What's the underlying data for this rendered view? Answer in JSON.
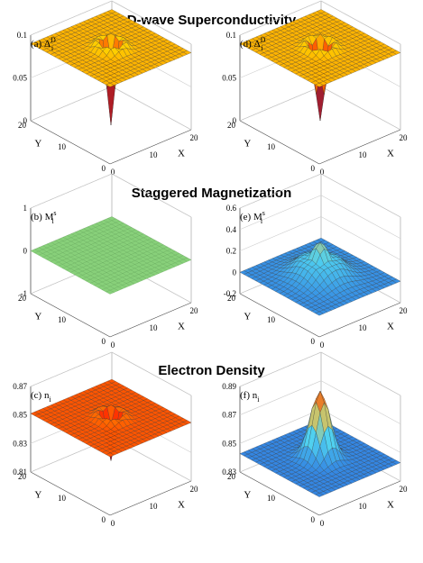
{
  "sections": [
    {
      "title": "D-wave Superconductivity"
    },
    {
      "title": "Staggered Magnetization"
    },
    {
      "title": "Electron Density"
    }
  ],
  "colors": {
    "hot_low": "#ff1a00",
    "hot_high": "#ffe000",
    "cool_low": "#1f4fd8",
    "cool_high": "#ffffff",
    "green": "#88d07a"
  },
  "chart_data": [
    {
      "id": "a",
      "type": "surface",
      "panel_label": "(a) Δ",
      "panel_sub": "i",
      "panel_sup": "D",
      "colormap": "hot",
      "xlabel": "X",
      "ylabel": "Y",
      "xlim": [
        0,
        20
      ],
      "ylim": [
        0,
        20
      ],
      "zlim": [
        0,
        0.1
      ],
      "xticks": [
        "0",
        "10",
        "20"
      ],
      "yticks": [
        "0",
        "10",
        "20"
      ],
      "zticks": [
        "0",
        "0.05",
        "0.1"
      ],
      "surface": {
        "base": 0.09,
        "peak": -0.09,
        "width": 0.9,
        "ring": 0.012,
        "center": [
          10,
          10
        ]
      }
    },
    {
      "id": "d",
      "type": "surface",
      "panel_label": "(d) Δ",
      "panel_sub": "i",
      "panel_sup": "D",
      "colormap": "hot",
      "xlabel": "X",
      "ylabel": "Y",
      "xlim": [
        0,
        20
      ],
      "ylim": [
        0,
        20
      ],
      "zlim": [
        0,
        0.1
      ],
      "xticks": [
        "0",
        "10",
        "20"
      ],
      "yticks": [
        "0",
        "10",
        "20"
      ],
      "zticks": [
        "0",
        "0.05",
        "0.1"
      ],
      "surface": {
        "base": 0.09,
        "peak": -0.085,
        "width": 1.1,
        "ring": 0.015,
        "center": [
          10,
          10
        ]
      }
    },
    {
      "id": "b",
      "type": "surface",
      "panel_label": "(b) M",
      "panel_sub": "i",
      "panel_sup": "s",
      "colormap": "green",
      "xlabel": "X",
      "ylabel": "Y",
      "xlim": [
        0,
        20
      ],
      "ylim": [
        0,
        20
      ],
      "zlim": [
        -1,
        1
      ],
      "xticks": [
        "0",
        "10",
        "20"
      ],
      "yticks": [
        "0",
        "10",
        "20"
      ],
      "zticks": [
        "-1",
        "0",
        "1"
      ],
      "surface": {
        "base": 0.0,
        "peak": 0.0,
        "width": 1,
        "ring": 0,
        "center": [
          10,
          10
        ]
      }
    },
    {
      "id": "e",
      "type": "surface",
      "panel_label": "(e) M",
      "panel_sub": "i",
      "panel_sup": "s",
      "colormap": "cool",
      "xlabel": "X",
      "ylabel": "Y",
      "xlim": [
        0,
        20
      ],
      "ylim": [
        0,
        20
      ],
      "zlim": [
        -0.2,
        0.6
      ],
      "xticks": [
        "0",
        "10",
        "20"
      ],
      "yticks": [
        "0",
        "10",
        "20"
      ],
      "zticks": [
        "-0.2",
        "0",
        "0.2",
        "0.4",
        "0.6"
      ],
      "surface": {
        "base": 0.0,
        "peak": 0.32,
        "width": 3.2,
        "ring": -0.08,
        "center": [
          10,
          10
        ]
      }
    },
    {
      "id": "c",
      "type": "surface",
      "panel_label": "(c) n",
      "panel_sub": "i",
      "panel_sup": "",
      "colormap": "hot",
      "xlabel": "X",
      "ylabel": "Y",
      "xlim": [
        0,
        20
      ],
      "ylim": [
        0,
        20
      ],
      "zlim": [
        0.81,
        0.87
      ],
      "xticks": [
        "0",
        "10",
        "20"
      ],
      "yticks": [
        "0",
        "10",
        "20"
      ],
      "zticks": [
        "0.81",
        "0.83",
        "0.85",
        "0.87"
      ],
      "surface": {
        "base": 0.851,
        "peak": -0.03,
        "width": 1.0,
        "ring": 0.006,
        "center": [
          10,
          10
        ]
      }
    },
    {
      "id": "f",
      "type": "surface",
      "panel_label": "(f) n",
      "panel_sub": "i",
      "panel_sup": "",
      "colormap": "cool",
      "xlabel": "X",
      "ylabel": "Y",
      "xlim": [
        0,
        20
      ],
      "ylim": [
        0,
        20
      ],
      "zlim": [
        0.83,
        0.9
      ],
      "xticks": [
        "0",
        "10",
        "20"
      ],
      "yticks": [
        "0",
        "10",
        "20"
      ],
      "zticks": [
        "0.83",
        "0.85",
        "0.87",
        "0.89"
      ],
      "surface": {
        "base": 0.845,
        "peak": 0.055,
        "width": 1.8,
        "ring": 0.0,
        "center": [
          10,
          10
        ]
      }
    }
  ]
}
